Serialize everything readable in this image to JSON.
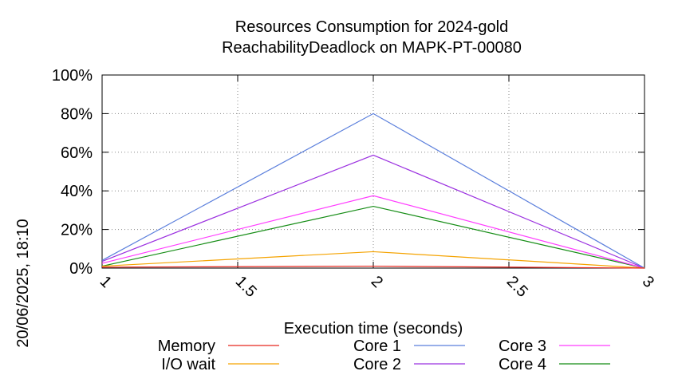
{
  "chart_data": {
    "type": "line",
    "title": "Resources Consumption for 2024-gold",
    "subtitle": "ReachabilityDeadlock on MAPK-PT-00080",
    "xlabel": "Execution time (seconds)",
    "ylabel": "",
    "side_label": "20/06/2025, 18:10",
    "xlim": [
      1,
      3
    ],
    "ylim": [
      0,
      100
    ],
    "x_ticks": [
      1,
      1.5,
      2,
      2.5,
      3
    ],
    "x_tick_labels": [
      "1",
      "1.5",
      "2",
      "2.5",
      "3"
    ],
    "y_ticks": [
      0,
      20,
      40,
      60,
      80,
      100
    ],
    "y_tick_labels": [
      "0%",
      "20%",
      "40%",
      "60%",
      "80%",
      "100%"
    ],
    "grid": true,
    "legend_position": "bottom",
    "x": [
      1,
      2,
      3
    ],
    "series": [
      {
        "name": "Memory",
        "color": "#e8281f",
        "values": [
          0.5,
          1.0,
          0.0
        ]
      },
      {
        "name": "I/O wait",
        "color": "#f5a300",
        "values": [
          1.0,
          8.5,
          0.0
        ]
      },
      {
        "name": "Core 1",
        "color": "#5b7fdc",
        "values": [
          4.0,
          80.0,
          0.0
        ]
      },
      {
        "name": "Core 2",
        "color": "#9b30e0",
        "values": [
          3.5,
          58.5,
          0.0
        ]
      },
      {
        "name": "Core 3",
        "color": "#ff3cff",
        "values": [
          2.5,
          37.5,
          0.0
        ]
      },
      {
        "name": "Core 4",
        "color": "#148c14",
        "values": [
          1.0,
          32.0,
          0.0
        ]
      }
    ]
  }
}
